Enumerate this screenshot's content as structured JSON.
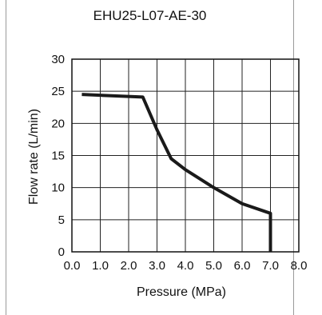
{
  "chart_data": {
    "type": "line",
    "title": "EHU25-L07-AE-30",
    "xlabel": "Pressure (MPa)",
    "ylabel": "Flow rate (L/min)",
    "xlim": [
      0.0,
      8.0
    ],
    "ylim": [
      0,
      30
    ],
    "x_ticks": [
      "0.0",
      "1.0",
      "2.0",
      "3.0",
      "4.0",
      "5.0",
      "6.0",
      "7.0",
      "8.0"
    ],
    "y_ticks": [
      "0",
      "5",
      "10",
      "15",
      "20",
      "25",
      "30"
    ],
    "grid": true,
    "series": [
      {
        "color": "#1a1a1a",
        "x": [
          0.35,
          2.5,
          3.0,
          3.5,
          4.0,
          5.0,
          6.0,
          7.0,
          7.0
        ],
        "y": [
          24.5,
          24.1,
          19.0,
          14.5,
          12.8,
          10.0,
          7.5,
          6.0,
          0.0
        ]
      }
    ]
  }
}
